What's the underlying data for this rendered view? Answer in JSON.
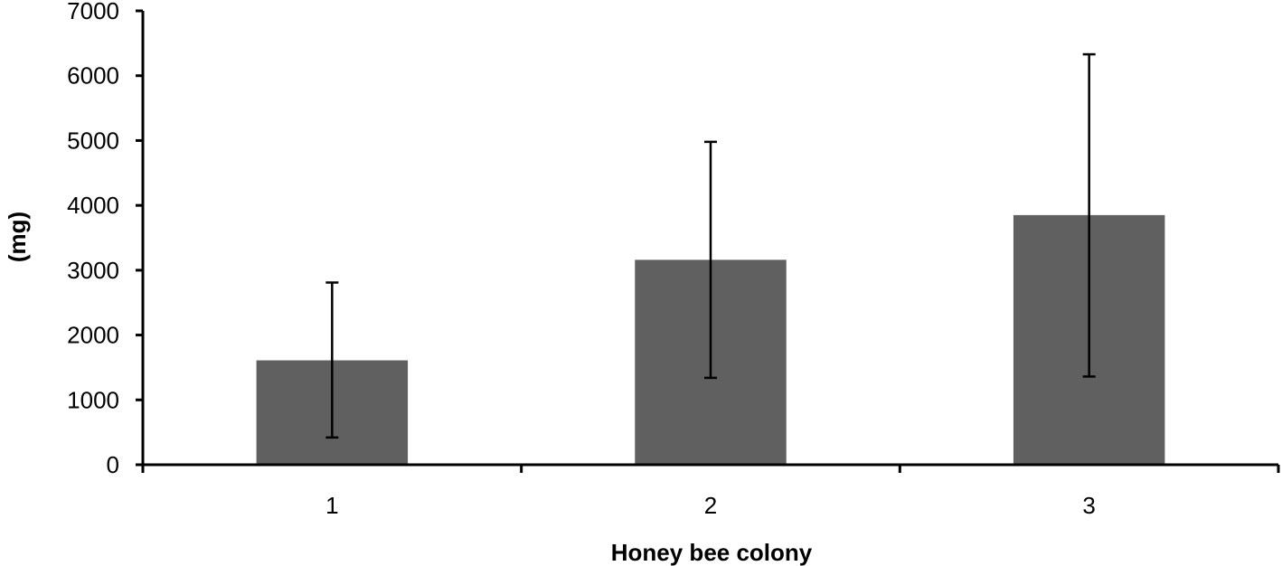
{
  "chart_data": {
    "type": "bar",
    "categories": [
      "1",
      "2",
      "3"
    ],
    "values": [
      1610,
      3160,
      3850
    ],
    "error_low": [
      420,
      1340,
      1360
    ],
    "error_high": [
      2810,
      4980,
      6330
    ],
    "xlabel": "Honey bee colony",
    "ylabel": "(mg)",
    "ylim": [
      0,
      7000
    ],
    "yticks": [
      "0",
      "1000",
      "2000",
      "3000",
      "4000",
      "5000",
      "6000",
      "7000"
    ],
    "grid": false,
    "legend": "none",
    "bar_color": "#606060"
  }
}
